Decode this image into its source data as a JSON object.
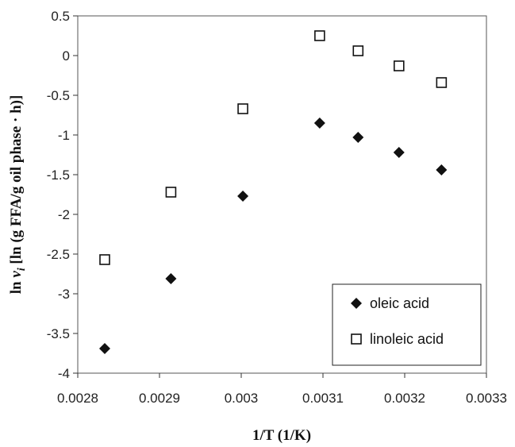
{
  "chart_data": {
    "type": "scatter",
    "xlabel": "1/T (1/K)",
    "ylabel_prefix": "ln ",
    "ylabel_var": "v",
    "ylabel_sub": "i",
    "ylabel_suffix": " [ln (g FFA/g oil phase · h)]",
    "xlim": [
      0.0028,
      0.0033
    ],
    "ylim": [
      -4,
      0.5
    ],
    "xticks": [
      "0.0028",
      "0.0029",
      "0.003",
      "0.0031",
      "0.0032",
      "0.0033"
    ],
    "yticks": [
      "0.5",
      "0",
      "-0.5",
      "-1",
      "-1.5",
      "-2",
      "-2.5",
      "-3",
      "-3.5",
      "-4"
    ],
    "grid": false,
    "legend_position": "bottom-right",
    "series": [
      {
        "name": "oleic acid",
        "marker": "filled-diamond",
        "color": "#111111",
        "x": [
          0.002833,
          0.002914,
          0.003002,
          0.003096,
          0.003143,
          0.003193,
          0.003245
        ],
        "y": [
          -3.69,
          -2.81,
          -1.77,
          -0.85,
          -1.03,
          -1.22,
          -1.44
        ]
      },
      {
        "name": "linoleic acid",
        "marker": "open-square",
        "color": "#111111",
        "x": [
          0.002833,
          0.002914,
          0.003002,
          0.003096,
          0.003143,
          0.003193,
          0.003245
        ],
        "y": [
          -2.57,
          -1.72,
          -0.67,
          0.25,
          0.06,
          -0.13,
          -0.34
        ]
      }
    ]
  }
}
